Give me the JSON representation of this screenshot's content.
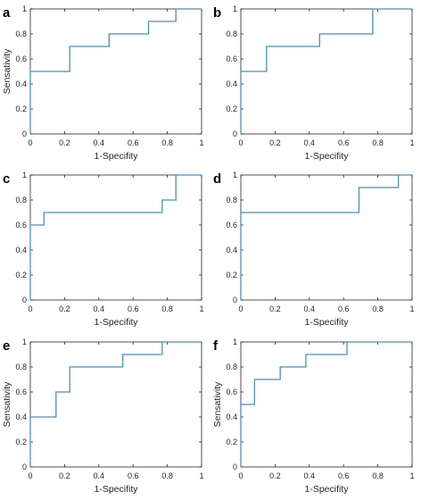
{
  "colors": {
    "curve": "#4a90b8",
    "axes": "#262626"
  },
  "chart_data": [
    {
      "type": "line",
      "panel_label": "a",
      "xlabel": "1-Specifity",
      "ylabel": "Sensativity",
      "xlim": [
        0,
        1
      ],
      "ylim": [
        0,
        1
      ],
      "xticks": [
        "0",
        "0.2",
        "0.4",
        "0.6",
        "0.8",
        "1"
      ],
      "yticks": [
        "0",
        "0.2",
        "0.4",
        "0.6",
        "0.8",
        "1"
      ],
      "x": [
        0,
        0,
        0.23,
        0.23,
        0.46,
        0.46,
        0.69,
        0.69,
        0.85,
        0.85,
        1
      ],
      "y": [
        0,
        0.5,
        0.5,
        0.7,
        0.7,
        0.8,
        0.8,
        0.9,
        0.9,
        1,
        1
      ]
    },
    {
      "type": "line",
      "panel_label": "b",
      "xlabel": "1-Specifity",
      "ylabel": "",
      "xlim": [
        0,
        1
      ],
      "ylim": [
        0,
        1
      ],
      "xticks": [
        "0",
        "0.2",
        "0.4",
        "0.6",
        "0.8",
        "1"
      ],
      "yticks": [
        "0",
        "0.2",
        "0.4",
        "0.6",
        "0.8",
        "1"
      ],
      "x": [
        0,
        0,
        0.15,
        0.15,
        0.46,
        0.46,
        0.77,
        0.77,
        1
      ],
      "y": [
        0,
        0.5,
        0.5,
        0.7,
        0.7,
        0.8,
        0.8,
        1,
        1
      ]
    },
    {
      "type": "line",
      "panel_label": "c",
      "xlabel": "1-Specifity",
      "ylabel": "",
      "xlim": [
        0,
        1
      ],
      "ylim": [
        0,
        1
      ],
      "xticks": [
        "0",
        "0.2",
        "0.4",
        "0.6",
        "0.8",
        "1"
      ],
      "yticks": [
        "0",
        "0.2",
        "0.4",
        "0.6",
        "0.8",
        "1"
      ],
      "x": [
        0,
        0,
        0.08,
        0.08,
        0.77,
        0.77,
        0.85,
        0.85,
        1
      ],
      "y": [
        0,
        0.6,
        0.6,
        0.7,
        0.7,
        0.8,
        0.8,
        1,
        1
      ]
    },
    {
      "type": "line",
      "panel_label": "d",
      "xlabel": "1-Specifity",
      "ylabel": "",
      "xlim": [
        0,
        1
      ],
      "ylim": [
        0,
        1
      ],
      "xticks": [
        "0",
        "0.2",
        "0.4",
        "0.6",
        "0.8",
        "1"
      ],
      "yticks": [
        "0",
        "0.2",
        "0.4",
        "0.6",
        "0.8",
        "1"
      ],
      "x": [
        0,
        0,
        0.69,
        0.69,
        0.92,
        0.92,
        1
      ],
      "y": [
        0,
        0.7,
        0.7,
        0.9,
        0.9,
        1,
        1
      ]
    },
    {
      "type": "line",
      "panel_label": "e",
      "xlabel": "1-Specifity",
      "ylabel": "Sensativity",
      "xlim": [
        0,
        1
      ],
      "ylim": [
        0,
        1
      ],
      "xticks": [
        "0",
        "0.2",
        "0.4",
        "0.6",
        "0.8",
        "1"
      ],
      "yticks": [
        "0",
        "0.2",
        "0.4",
        "0.6",
        "0.8",
        "1"
      ],
      "x": [
        0,
        0,
        0.15,
        0.15,
        0.23,
        0.23,
        0.54,
        0.54,
        0.77,
        0.77,
        1
      ],
      "y": [
        0,
        0.4,
        0.4,
        0.6,
        0.6,
        0.8,
        0.8,
        0.9,
        0.9,
        1,
        1
      ]
    },
    {
      "type": "line",
      "panel_label": "f",
      "xlabel": "1-Specifity",
      "ylabel": "Sensativity",
      "xlim": [
        0,
        1
      ],
      "ylim": [
        0,
        1
      ],
      "xticks": [
        "0",
        "0.2",
        "0.4",
        "0.6",
        "0.8",
        "1"
      ],
      "yticks": [
        "0",
        "0.2",
        "0.4",
        "0.6",
        "0.8",
        "1"
      ],
      "x": [
        0,
        0,
        0.08,
        0.08,
        0.23,
        0.23,
        0.38,
        0.38,
        0.62,
        0.62,
        1
      ],
      "y": [
        0,
        0.5,
        0.5,
        0.7,
        0.7,
        0.8,
        0.8,
        0.9,
        0.9,
        1,
        1
      ]
    }
  ]
}
